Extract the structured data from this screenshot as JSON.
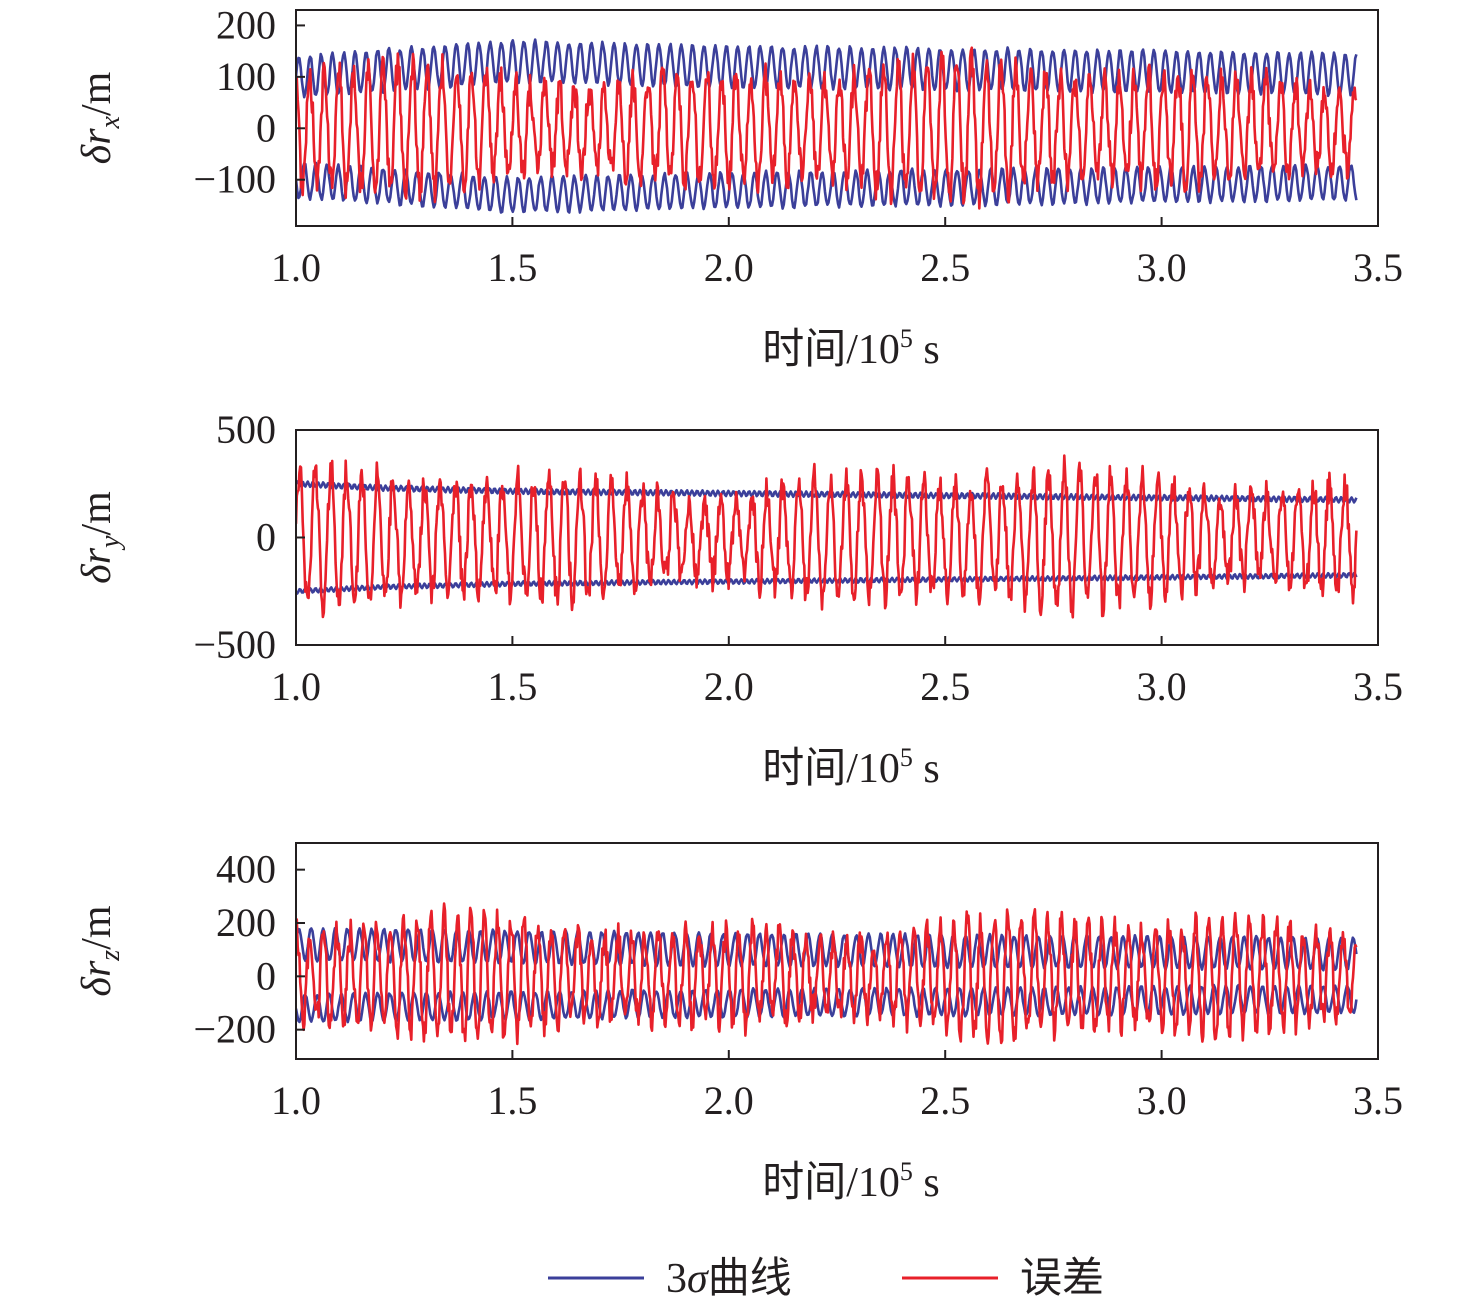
{
  "chart_data": [
    {
      "type": "line",
      "ylabel": {
        "main": "δr",
        "sub": "x",
        "unit": "/m"
      },
      "xlabel": "时间/10⁵ s",
      "xlabel_parts": {
        "pre": "时间/10",
        "sup": "5",
        "post": " s"
      },
      "xlim": [
        1.0,
        3.5
      ],
      "ylim": [
        -190,
        230
      ],
      "x_ticks": [
        "1.0",
        "1.5",
        "2.0",
        "2.5",
        "3.0",
        "3.5"
      ],
      "y_ticks": [
        {
          "value": 200,
          "label": "200"
        },
        {
          "value": 100,
          "label": "100"
        },
        {
          "value": 0,
          "label": "0"
        },
        {
          "value": -100,
          "label": "−100"
        }
      ],
      "x_data_range": [
        1.0,
        3.45
      ],
      "series": [
        {
          "key": "sigma",
          "envelope": true,
          "base_points": [
            [
              1.0,
              100
            ],
            [
              1.5,
              130
            ],
            [
              2.0,
              120
            ],
            [
              2.5,
              115
            ],
            [
              3.0,
              110
            ],
            [
              3.45,
              105
            ]
          ],
          "amplitude": 40,
          "period": 0.026
        },
        {
          "key": "error",
          "peak_min": -180,
          "peak_max": 220,
          "amplitude": 110,
          "period": 0.034
        }
      ]
    },
    {
      "type": "line",
      "ylabel": {
        "main": "δr",
        "sub": "y",
        "unit": "/m"
      },
      "xlabel": "时间/10⁵ s",
      "xlabel_parts": {
        "pre": "时间/10",
        "sup": "5",
        "post": " s"
      },
      "xlim": [
        1.0,
        3.5
      ],
      "ylim": [
        -500,
        500
      ],
      "x_ticks": [
        "1.0",
        "1.5",
        "2.0",
        "2.5",
        "3.0",
        "3.5"
      ],
      "y_ticks": [
        {
          "value": 500,
          "label": "500"
        },
        {
          "value": 0,
          "label": "0"
        },
        {
          "value": -500,
          "label": "−500"
        }
      ],
      "x_data_range": [
        1.0,
        3.45
      ],
      "series": [
        {
          "key": "sigma",
          "envelope": true,
          "base_points": [
            [
              1.0,
              250
            ],
            [
              1.2,
              230
            ],
            [
              1.5,
              215
            ],
            [
              2.0,
              205
            ],
            [
              2.5,
              195
            ],
            [
              3.0,
              185
            ],
            [
              3.45,
              175
            ]
          ],
          "amplitude": 12,
          "period": 0.012
        },
        {
          "key": "error",
          "peak_min": -420,
          "peak_max": 450,
          "amplitude": 270,
          "period": 0.036
        }
      ]
    },
    {
      "type": "line",
      "ylabel": {
        "main": "δr",
        "sub": "z",
        "unit": "/m"
      },
      "xlabel": "时间/10⁵ s",
      "xlabel_parts": {
        "pre": "时间/10",
        "sup": "5",
        "post": " s"
      },
      "xlim": [
        1.0,
        3.5
      ],
      "ylim": [
        -310,
        500
      ],
      "x_ticks": [
        "1.0",
        "1.5",
        "2.0",
        "2.5",
        "3.0",
        "3.5"
      ],
      "y_ticks": [
        {
          "value": 400,
          "label": "400"
        },
        {
          "value": 200,
          "label": "200"
        },
        {
          "value": 0,
          "label": "0"
        },
        {
          "value": -200,
          "label": "−200"
        }
      ],
      "x_data_range": [
        1.0,
        3.45
      ],
      "series": [
        {
          "key": "sigma",
          "envelope": true,
          "base_points": [
            [
              1.0,
              120
            ],
            [
              1.5,
              110
            ],
            [
              2.0,
              100
            ],
            [
              2.5,
              95
            ],
            [
              3.0,
              90
            ],
            [
              3.45,
              85
            ]
          ],
          "amplitude": 60,
          "period": 0.028
        },
        {
          "key": "error",
          "peak_min": -260,
          "peak_max": 360,
          "amplitude": 190,
          "period": 0.031
        }
      ]
    }
  ],
  "legend": {
    "placement": "bottom-center",
    "items": [
      {
        "key": "sigma",
        "label_pre": "3",
        "label_sym": "σ",
        "label_post": "曲线",
        "color": "#3b3f9a"
      },
      {
        "key": "error",
        "label": "误差",
        "color": "#e8202a"
      }
    ]
  },
  "colors": {
    "sigma": "#3b3f9a",
    "error": "#e8202a",
    "axis": "#231f20"
  }
}
